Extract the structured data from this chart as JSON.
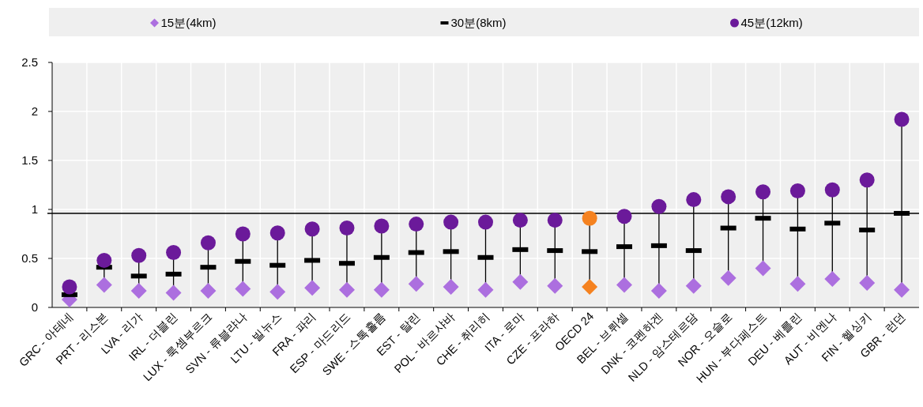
{
  "chart_data": {
    "type": "scatter",
    "categories": [
      "GRC - 아테네",
      "PRT - 리스본",
      "LVA - 리가",
      "IRL - 더블린",
      "LUX - 룩셈부르크",
      "SVN - 류블랴나",
      "LTU - 빌뉴스",
      "FRA - 파리",
      "ESP - 마드리드",
      "SWE - 스톡홀름",
      "EST - 탈린",
      "POL - 바르샤바",
      "CHE - 취리히",
      "ITA - 로마",
      "CZE - 프라하",
      "OECD 24",
      "BEL - 브뤼셀",
      "DNK - 코펜하겐",
      "NLD - 암스테르담",
      "NOR - 오슬로",
      "HUN - 부다페스트",
      "DEU - 베를린",
      "AUT - 비엔나",
      "FIN - 헬싱키",
      "GBR - 런던"
    ],
    "series": [
      {
        "name": "15분(4km)",
        "marker": "diamond",
        "color": "#ac6fdf",
        "colors": [
          "#ac6fdf",
          "#ac6fdf",
          "#ac6fdf",
          "#ac6fdf",
          "#ac6fdf",
          "#ac6fdf",
          "#ac6fdf",
          "#ac6fdf",
          "#ac6fdf",
          "#ac6fdf",
          "#ac6fdf",
          "#ac6fdf",
          "#ac6fdf",
          "#ac6fdf",
          "#ac6fdf",
          "#f58220",
          "#ac6fdf",
          "#ac6fdf",
          "#ac6fdf",
          "#ac6fdf",
          "#ac6fdf",
          "#ac6fdf",
          "#ac6fdf",
          "#ac6fdf",
          "#ac6fdf"
        ],
        "values": [
          0.08,
          0.23,
          0.17,
          0.15,
          0.17,
          0.19,
          0.16,
          0.2,
          0.18,
          0.18,
          0.24,
          0.21,
          0.18,
          0.26,
          0.22,
          0.21,
          0.23,
          0.17,
          0.22,
          0.3,
          0.4,
          0.24,
          0.29,
          0.25,
          0.18
        ]
      },
      {
        "name": "30분(8km)",
        "color": "#000000",
        "values": [
          0.13,
          0.41,
          0.32,
          0.34,
          0.41,
          0.47,
          0.43,
          0.48,
          0.45,
          0.51,
          0.56,
          0.57,
          0.51,
          0.59,
          0.58,
          0.57,
          0.62,
          0.63,
          0.58,
          0.81,
          0.91,
          0.8,
          0.86,
          0.79,
          0.96
        ]
      },
      {
        "name": "45분(12km)",
        "marker": "circle",
        "color": "#6b1a9a",
        "colors": [
          "#6b1a9a",
          "#6b1a9a",
          "#6b1a9a",
          "#6b1a9a",
          "#6b1a9a",
          "#6b1a9a",
          "#6b1a9a",
          "#6b1a9a",
          "#6b1a9a",
          "#6b1a9a",
          "#6b1a9a",
          "#6b1a9a",
          "#6b1a9a",
          "#6b1a9a",
          "#6b1a9a",
          "#f58220",
          "#6b1a9a",
          "#6b1a9a",
          "#6b1a9a",
          "#6b1a9a",
          "#6b1a9a",
          "#6b1a9a",
          "#6b1a9a",
          "#6b1a9a",
          "#6b1a9a"
        ],
        "values": [
          0.21,
          0.48,
          0.53,
          0.56,
          0.66,
          0.75,
          0.76,
          0.8,
          0.81,
          0.83,
          0.85,
          0.87,
          0.87,
          0.89,
          0.89,
          0.91,
          0.93,
          1.03,
          1.1,
          1.13,
          1.18,
          1.19,
          1.2,
          1.3,
          1.92
        ]
      }
    ],
    "ylim": [
      0,
      2.5
    ],
    "yticks": [
      0,
      0.5,
      1,
      1.5,
      2,
      2.5
    ],
    "grid": true,
    "legend": "top",
    "ref_lines": [
      {
        "axis": "y",
        "value": 0.96
      }
    ]
  }
}
